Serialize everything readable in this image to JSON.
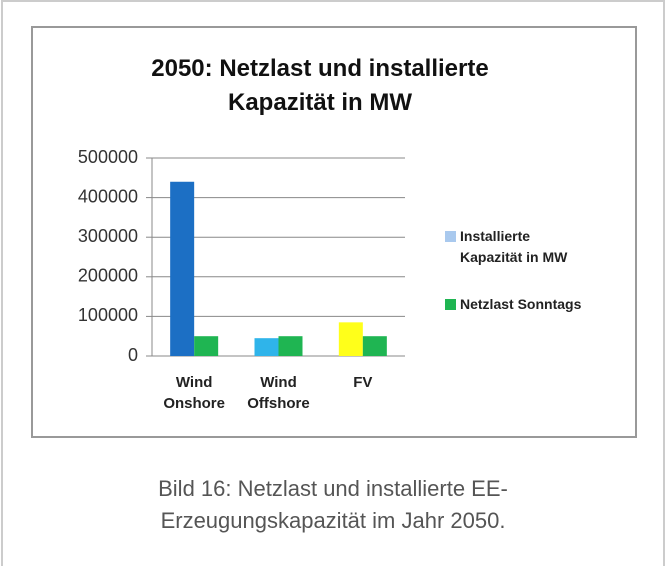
{
  "chart_data": {
    "type": "bar",
    "title": "2050: Netzlast und installierte Kapazität in MW",
    "categories": [
      "Wind Onshore",
      "Wind Offshore",
      "FV"
    ],
    "series": [
      {
        "name": "Installierte Kapazität in MW",
        "color": "#a9c9ee",
        "colors": [
          "#1c6fc4",
          "#2fb4ea",
          "#ffff1a"
        ],
        "values": [
          440000,
          45000,
          85000
        ]
      },
      {
        "name": "Netzlast Sonntags",
        "color": "#1fb552",
        "values": [
          50000,
          50000,
          50000
        ]
      }
    ],
    "ylim": [
      0,
      500000
    ],
    "yticks": [
      0,
      100000,
      200000,
      300000,
      400000,
      500000
    ],
    "grid": true,
    "legend": "right"
  },
  "caption": [
    "Bild 16: Netzlast und installierte EE-",
    "Erzeugungskapazität im Jahr 2050."
  ]
}
